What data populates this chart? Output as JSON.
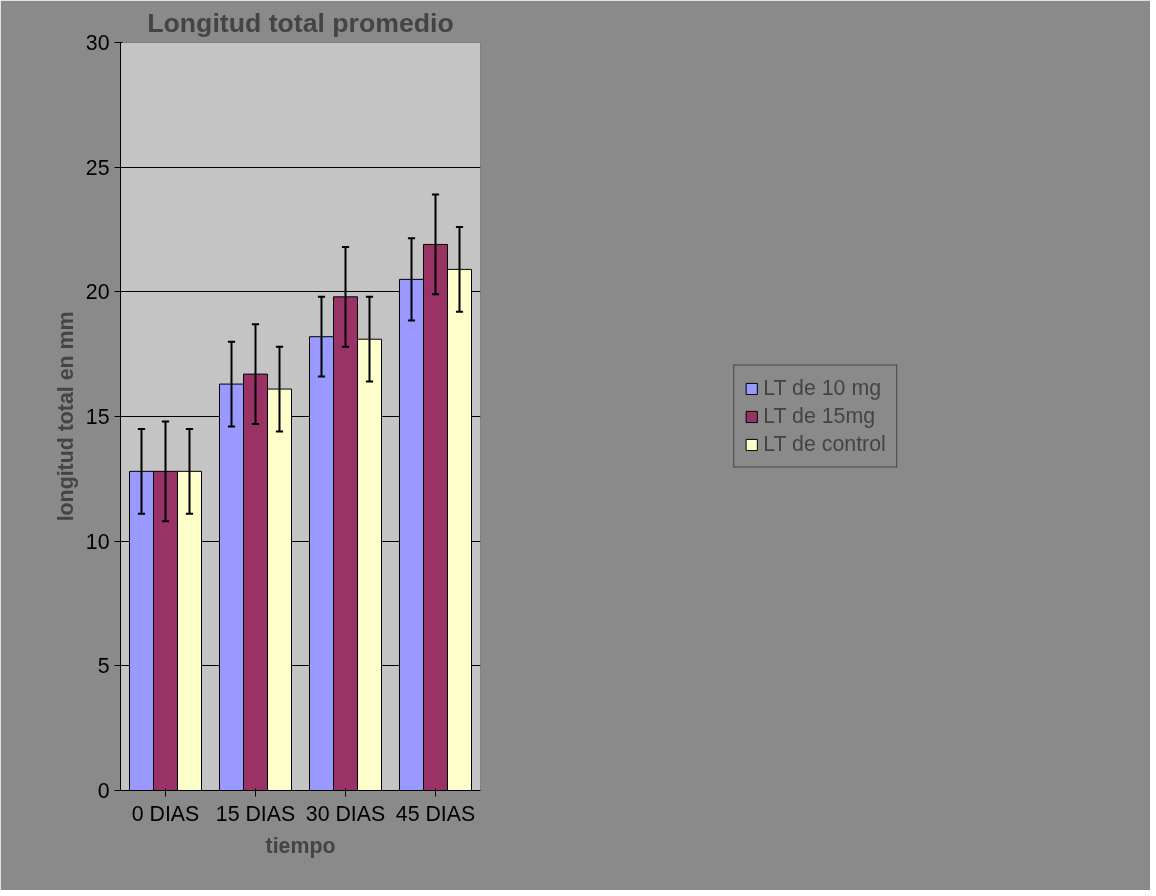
{
  "chart_data": {
    "type": "bar",
    "title": "Longitud total promedio",
    "xlabel": "tiempo",
    "ylabel": "longitud total en mm",
    "categories": [
      "0 DIAS",
      "15 DIAS",
      "30 DIAS",
      "45 DIAS"
    ],
    "series": [
      {
        "name": "LT de 10 mg",
        "color": "#9999ff",
        "values": [
          12.8,
          16.3,
          18.2,
          20.5
        ],
        "errors": [
          1.7,
          1.7,
          1.6,
          1.65
        ]
      },
      {
        "name": "LT de 15mg",
        "color": "#993366",
        "values": [
          12.8,
          16.7,
          19.8,
          21.9
        ],
        "errors": [
          2.0,
          2.0,
          2.0,
          2.0
        ]
      },
      {
        "name": "LT de control",
        "color": "#ffffcc",
        "values": [
          12.8,
          16.1,
          18.1,
          20.9
        ],
        "errors": [
          1.7,
          1.7,
          1.7,
          1.7
        ]
      }
    ],
    "ylim": [
      0,
      30
    ],
    "yticks": [
      0,
      5,
      10,
      15,
      20,
      25,
      30
    ],
    "grid": "y",
    "legend": "right"
  }
}
